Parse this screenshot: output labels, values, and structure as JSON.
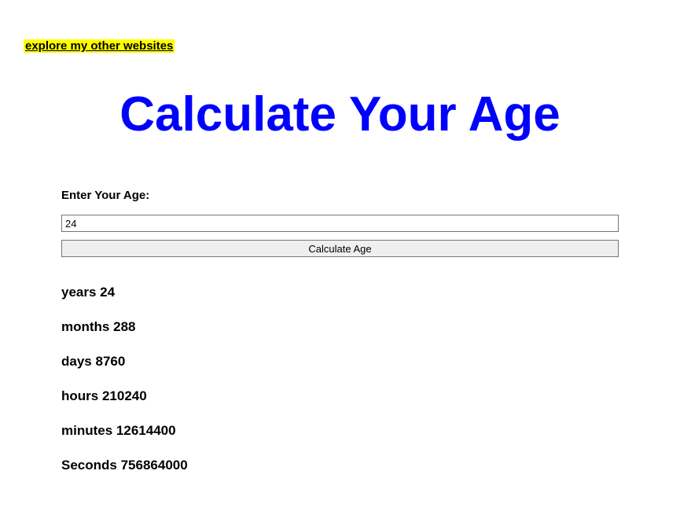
{
  "top_link": {
    "text": "explore my other websites"
  },
  "title": "Calculate Your Age",
  "form": {
    "label": "Enter Your Age:",
    "input_value": "24",
    "button_label": "Calculate Age"
  },
  "results": {
    "years": {
      "label": "years",
      "value": "24"
    },
    "months": {
      "label": "months",
      "value": "288"
    },
    "days": {
      "label": "days",
      "value": "8760"
    },
    "hours": {
      "label": "hours",
      "value": "210240"
    },
    "minutes": {
      "label": "minutes",
      "value": "12614400"
    },
    "seconds": {
      "label": "Seconds",
      "value": "756864000"
    }
  },
  "colors": {
    "title_color": "#0000ff",
    "highlight_bg": "#ffff00",
    "background": "#ffffff",
    "text": "#000000",
    "button_bg": "#efefef",
    "border": "#767676"
  },
  "typography": {
    "title_fontsize": 62,
    "label_fontsize": 15,
    "result_fontsize": 17,
    "input_fontsize": 13
  }
}
